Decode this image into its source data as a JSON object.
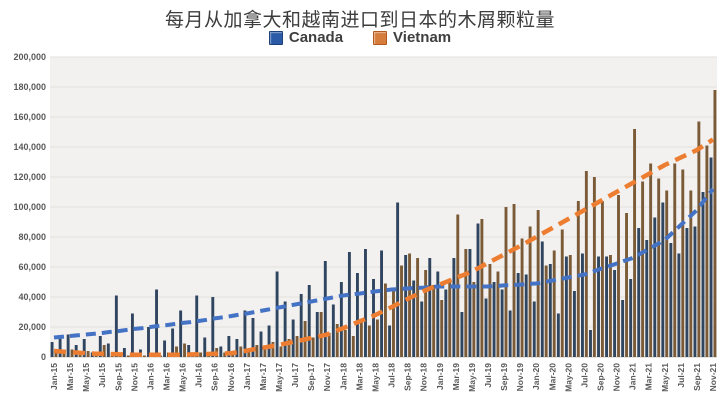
{
  "figure": {
    "background": "#ffffff"
  },
  "chart_data": {
    "type": "bar",
    "title": "每月从加拿大和越南进口到日本的木屑颗粒量",
    "xlabel": "",
    "ylabel": "",
    "ylim": [
      0,
      200000
    ],
    "ytick_step": 20000,
    "xtick_every": 2,
    "grid": true,
    "legend_position": "top",
    "plot_bg": "#f2f1ef",
    "grid_color": "#e3e1de",
    "zero_line_color": "#c9c7c4",
    "axis_label_color": "#595959",
    "categories": [
      "Jan-15",
      "Feb-15",
      "Mar-15",
      "Apr-15",
      "May-15",
      "Jun-15",
      "Jul-15",
      "Aug-15",
      "Sep-15",
      "Oct-15",
      "Nov-15",
      "Dec-15",
      "Jan-16",
      "Feb-16",
      "Mar-16",
      "Apr-16",
      "May-16",
      "Jun-16",
      "Jul-16",
      "Aug-16",
      "Sep-16",
      "Oct-16",
      "Nov-16",
      "Dec-16",
      "Jan-17",
      "Feb-17",
      "Mar-17",
      "Apr-17",
      "May-17",
      "Jun-17",
      "Jul-17",
      "Aug-17",
      "Sep-17",
      "Oct-17",
      "Nov-17",
      "Dec-17",
      "Jan-18",
      "Feb-18",
      "Mar-18",
      "Apr-18",
      "May-18",
      "Jun-18",
      "Jul-18",
      "Aug-18",
      "Sep-18",
      "Oct-18",
      "Nov-18",
      "Dec-18",
      "Jan-19",
      "Feb-19",
      "Mar-19",
      "Apr-19",
      "May-19",
      "Jun-19",
      "Jul-19",
      "Aug-19",
      "Sep-19",
      "Oct-19",
      "Nov-19",
      "Dec-19",
      "Jan-20",
      "Feb-20",
      "Mar-20",
      "Apr-20",
      "May-20",
      "Jun-20",
      "Jul-20",
      "Aug-20",
      "Sep-20",
      "Oct-20",
      "Nov-20",
      "Dec-20",
      "Jan-21",
      "Feb-21",
      "Mar-21",
      "Apr-21",
      "May-21",
      "Jun-21",
      "Jul-21",
      "Aug-21",
      "Sep-21",
      "Oct-21",
      "Nov-21"
    ],
    "series": [
      {
        "name": "Canada",
        "color": "#30455f",
        "legend_color": "#2b5aa7",
        "legend_color_dark": "#1d4079",
        "values": [
          10000,
          14000,
          15000,
          8000,
          12000,
          3000,
          14000,
          9000,
          41000,
          6000,
          29000,
          5000,
          20000,
          45000,
          11000,
          19000,
          31000,
          8000,
          41000,
          13000,
          40000,
          7000,
          14000,
          12000,
          31000,
          26000,
          17000,
          21000,
          57000,
          37000,
          25000,
          42000,
          48000,
          30000,
          64000,
          35000,
          50000,
          70000,
          56000,
          72000,
          52000,
          71000,
          21000,
          103000,
          68000,
          51000,
          37000,
          66000,
          57000,
          45000,
          66000,
          30000,
          72000,
          89000,
          39000,
          50000,
          45000,
          31000,
          56000,
          55000,
          37000,
          77000,
          62000,
          29000,
          67000,
          44000,
          69000,
          18000,
          67000,
          67000,
          58000,
          38000,
          52000,
          86000,
          78000,
          93000,
          103000,
          76000,
          69000,
          86000,
          87000,
          110000,
          133000
        ]
      },
      {
        "name": "Vietnam",
        "color": "#7b5b37",
        "legend_color": "#d67c3c",
        "legend_color_dark": "#b05a1e",
        "values": [
          4000,
          5000,
          5000,
          2000,
          4000,
          1000,
          8000,
          3000,
          2000,
          1000,
          3000,
          1000,
          2000,
          1000,
          3000,
          7000,
          9000,
          2000,
          3000,
          2000,
          6000,
          3000,
          4000,
          7000,
          3000,
          8000,
          5000,
          10000,
          7000,
          12000,
          14000,
          24000,
          13000,
          30000,
          16000,
          22000,
          18000,
          14000,
          24000,
          21000,
          25000,
          49000,
          44000,
          61000,
          69000,
          66000,
          58000,
          48000,
          38000,
          52000,
          95000,
          72000,
          50000,
          92000,
          62000,
          57000,
          100000,
          102000,
          79000,
          87000,
          98000,
          61000,
          71000,
          85000,
          68000,
          104000,
          124000,
          120000,
          104000,
          68000,
          108000,
          96000,
          152000,
          117000,
          129000,
          119000,
          111000,
          129000,
          125000,
          111000,
          157000,
          141000,
          178000
        ]
      }
    ],
    "trendlines": [
      {
        "series": "Canada",
        "style": "dashed",
        "color": "#4472c4",
        "values": [
          13000,
          13500,
          14000,
          14500,
          15000,
          15500,
          16000,
          16700,
          17300,
          18000,
          18700,
          19300,
          20000,
          20700,
          21300,
          22000,
          22700,
          23300,
          24000,
          24800,
          25700,
          26500,
          27300,
          28200,
          29000,
          30000,
          31000,
          32000,
          33000,
          34000,
          35000,
          36000,
          37000,
          38000,
          39000,
          40000,
          41000,
          41700,
          42300,
          43000,
          43700,
          44300,
          45000,
          45300,
          45700,
          46000,
          46300,
          46700,
          47000,
          47000,
          47000,
          47000,
          47000,
          47000,
          47000,
          47300,
          47700,
          48000,
          48300,
          48700,
          49000,
          50000,
          51000,
          52000,
          53000,
          54000,
          55000,
          56800,
          58700,
          60500,
          62300,
          64200,
          66000,
          69000,
          72000,
          75000,
          78000,
          83000,
          88000,
          93000,
          98000,
          105000,
          112000
        ]
      },
      {
        "series": "Vietnam",
        "style": "dashed",
        "color": "#ed7d31",
        "values": [
          4000,
          3600,
          3200,
          2900,
          2500,
          2300,
          2200,
          2000,
          1800,
          1700,
          1500,
          1500,
          1500,
          1500,
          1500,
          1500,
          1500,
          1700,
          1800,
          2000,
          2200,
          2300,
          2500,
          3400,
          4300,
          5300,
          6200,
          7100,
          8000,
          9200,
          10300,
          11500,
          12700,
          13800,
          15000,
          17200,
          19300,
          21500,
          23700,
          25800,
          28000,
          30700,
          33300,
          36000,
          38700,
          41300,
          44000,
          46200,
          48300,
          50500,
          52700,
          54800,
          57000,
          59800,
          62700,
          65500,
          68300,
          71200,
          74000,
          77000,
          80000,
          83000,
          86000,
          89000,
          92000,
          95000,
          98000,
          101000,
          104000,
          107000,
          110000,
          113000,
          116000,
          119000,
          122000,
          125000,
          128000,
          130500,
          133000,
          135500,
          138000,
          141500,
          145000
        ]
      }
    ]
  }
}
